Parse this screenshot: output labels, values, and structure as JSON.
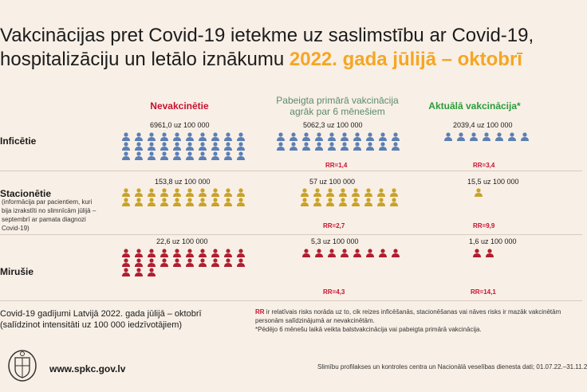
{
  "title": {
    "line1": "Vakcinācijas pret Covid-19 ietekme uz saslimstību ar Covid-19,",
    "line2_prefix": "hospitalizāciju un letālo iznākumu ",
    "line2_highlight": "2022. gada jūlijā – oktobrī",
    "highlight_color": "#f5a623"
  },
  "columns": [
    {
      "label": "Nevakcinētie",
      "color": "#c8102e"
    },
    {
      "label_line1": "Pabeigta primārā vakcinācija",
      "label_line2": "agrāk par 6 mēnešiem",
      "color": "#5b8c6b"
    },
    {
      "label": "Aktuālā vakcinācija*",
      "color": "#2a9d3a"
    }
  ],
  "rows": [
    {
      "label": "Inficētie",
      "icon_color": "#5b7fb4",
      "values": [
        "6961,0 uz 100 000",
        "5062,3 uz 100 000",
        "2039,4 uz 100 000"
      ],
      "rr": [
        "",
        "RR=1,4",
        "RR=3,4"
      ]
    },
    {
      "label": "Stacionētie",
      "note": "(informācija par pacientiem, kuri bija izrakstīti no slimnīcām jūlijā – septembrī ar pamata diagnozi Covid-19)",
      "icon_color": "#c9a227",
      "values": [
        "153,8 uz 100 000",
        "57 uz 100 000",
        "15,5 uz 100 000"
      ],
      "rr": [
        "",
        "RR=2,7",
        "RR=9,9"
      ]
    },
    {
      "label": "Mirušie",
      "icon_color": "#b01e2f",
      "values": [
        "22,6 uz 100 000",
        "5,3 uz 100 000",
        "1,6 uz 100 000"
      ],
      "rr": [
        "",
        "RR=4,3",
        "RR=14,1"
      ]
    }
  ],
  "footer": {
    "left_line1": "Covid-19 gadījumi Latvijā 2022. gada jūlijā – oktobrī",
    "left_line2": "(salīdzinot intensitāti uz 100 000 iedzīvotājiem)",
    "rr_abbr": "RR",
    "rr_text": " ir relatīvais risks norāda uz to, cik reizes inficēšanās, stacionēšanas vai nāves risks ir mazāk vakcinētām personām salīdzinājumā ar nevakcinētām.",
    "asterisk_note": "*Pēdējo 6 mēnešu laikā veikta balstvakcinācija vai pabeigta primārā vakcinācija.",
    "url": "www.spkc.gov.lv",
    "source": "Slimību profilakses un kontroles centra un Nacionālā veselības dienesta dati; 01.07.22.–31.11.2"
  },
  "icon_names": [
    "person-icon",
    "coat-of-arms-logo"
  ]
}
